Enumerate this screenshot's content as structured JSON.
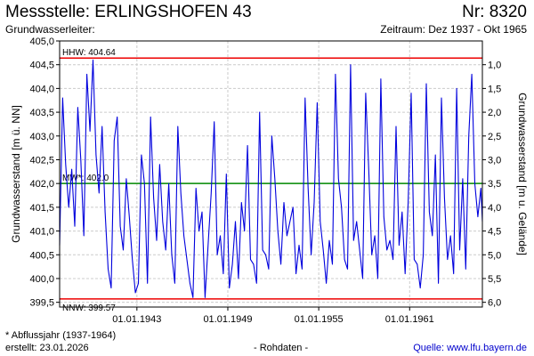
{
  "header": {
    "station_title": "Messstelle: ERLINGSHOFEN 43",
    "station_number": "Nr: 8320",
    "aquifer_label": "Grundwasserleiter:",
    "period": "Zeitraum: Dez 1937 - Okt 1965"
  },
  "footer": {
    "footnote": "* Abflussjahr (1937-1964)",
    "created": "erstellt:  23.01.2026",
    "raw_data": "- Rohdaten -",
    "source": "Quelle:  www.lfu.bayern.de"
  },
  "colors": {
    "series": "#0000dd",
    "extreme_lines": "#ee0000",
    "mean_line": "#008800",
    "grid": "#cccccc"
  },
  "chart_data": {
    "type": "line",
    "ylabel": "Grundwasserstand [m ü. NN]",
    "ylabel_right": "Grundwasserstand [m u. Gelände]",
    "ylim": [
      399.4,
      405.0
    ],
    "yticks": [
      "405,0",
      "404,5",
      "404,0",
      "403,5",
      "403,0",
      "402,5",
      "402,0",
      "401,5",
      "401,0",
      "400,5",
      "400,0",
      "399,5"
    ],
    "ytick_values": [
      405.0,
      404.5,
      404.0,
      403.5,
      403.0,
      402.5,
      402.0,
      401.5,
      401.0,
      400.5,
      400.0,
      399.5
    ],
    "yticks_right": [
      "1,0",
      "1,5",
      "2,0",
      "2,5",
      "3,0",
      "3,5",
      "4,0",
      "4,5",
      "5,0",
      "5,5",
      "6,0"
    ],
    "yticks_right_values": [
      1.0,
      1.5,
      2.0,
      2.5,
      3.0,
      3.5,
      4.0,
      4.5,
      5.0,
      5.5,
      6.0
    ],
    "ground_level": 405.5,
    "xlim": [
      1937.9,
      1965.8
    ],
    "xticks": [
      "01.01.1943",
      "01.01.1949",
      "01.01.1955",
      "01.01.1961"
    ],
    "xtick_values": [
      1943.0,
      1949.0,
      1955.0,
      1961.0
    ],
    "grid": true,
    "reference_lines": [
      {
        "label": "HHW: 404.64",
        "value": 404.64,
        "kind": "max"
      },
      {
        "label": "MW*: 402.0",
        "value": 402.0,
        "kind": "mean"
      },
      {
        "label": "NNW: 399.57",
        "value": 399.57,
        "kind": "min"
      }
    ],
    "series": [
      {
        "x": [
          1937.9,
          1938.1,
          1938.3,
          1938.5,
          1938.7,
          1938.9,
          1939.1,
          1939.3,
          1939.5,
          1939.7,
          1939.9,
          1940.1,
          1940.3,
          1940.5,
          1940.7,
          1940.9,
          1941.1,
          1941.3,
          1941.5,
          1941.7,
          1941.9,
          1942.1,
          1942.3,
          1942.5,
          1942.7,
          1942.9,
          1943.1,
          1943.3,
          1943.5,
          1943.7,
          1943.9,
          1944.1,
          1944.3,
          1944.5,
          1944.7,
          1944.9,
          1945.1,
          1945.3,
          1945.5,
          1945.7,
          1945.9,
          1946.1,
          1946.3,
          1946.5,
          1946.7,
          1946.9,
          1947.1,
          1947.3,
          1947.5,
          1947.7,
          1947.9,
          1948.1,
          1948.3,
          1948.5,
          1948.7,
          1948.9,
          1949.1,
          1949.3,
          1949.5,
          1949.7,
          1949.9,
          1950.1,
          1950.3,
          1950.5,
          1950.7,
          1950.9,
          1951.1,
          1951.3,
          1951.5,
          1951.7,
          1951.9,
          1952.1,
          1952.3,
          1952.5,
          1952.7,
          1952.9,
          1953.1,
          1953.3,
          1953.5,
          1953.7,
          1953.9,
          1954.1,
          1954.3,
          1954.5,
          1954.7,
          1954.9,
          1955.1,
          1955.3,
          1955.5,
          1955.7,
          1955.9,
          1956.1,
          1956.3,
          1956.5,
          1956.7,
          1956.9,
          1957.1,
          1957.3,
          1957.5,
          1957.7,
          1957.9,
          1958.1,
          1958.3,
          1958.5,
          1958.7,
          1958.9,
          1959.1,
          1959.3,
          1959.5,
          1959.7,
          1959.9,
          1960.1,
          1960.3,
          1960.5,
          1960.7,
          1960.9,
          1961.1,
          1961.3,
          1961.5,
          1961.7,
          1961.9,
          1962.1,
          1962.3,
          1962.5,
          1962.7,
          1962.9,
          1963.1,
          1963.3,
          1963.5,
          1963.7,
          1963.9,
          1964.1,
          1964.3,
          1964.5,
          1964.7,
          1964.9,
          1965.1,
          1965.3,
          1965.5,
          1965.7,
          1965.8
        ],
        "values": [
          400.7,
          403.8,
          402.4,
          401.5,
          402.3,
          401.1,
          403.6,
          402.5,
          400.9,
          404.3,
          403.1,
          404.6,
          402.6,
          401.8,
          403.2,
          401.4,
          400.2,
          399.8,
          402.9,
          403.4,
          401.1,
          400.6,
          402.1,
          401.3,
          400.4,
          399.7,
          399.9,
          402.6,
          402.0,
          399.9,
          403.4,
          401.7,
          400.8,
          402.4,
          401.2,
          400.6,
          402.0,
          400.5,
          399.9,
          403.2,
          401.8,
          400.9,
          400.4,
          399.9,
          399.6,
          401.9,
          401.0,
          401.4,
          399.6,
          400.7,
          401.8,
          403.3,
          400.5,
          400.9,
          400.1,
          402.2,
          399.8,
          400.3,
          401.2,
          400.0,
          401.6,
          401.0,
          402.8,
          400.4,
          400.3,
          399.9,
          403.5,
          400.6,
          400.5,
          400.2,
          403.0,
          402.1,
          401.0,
          400.3,
          401.6,
          400.9,
          401.2,
          401.5,
          400.1,
          400.7,
          400.2,
          403.8,
          401.9,
          400.5,
          401.6,
          403.7,
          401.2,
          400.6,
          399.9,
          400.8,
          400.3,
          404.3,
          402.1,
          401.5,
          400.4,
          400.2,
          404.5,
          400.8,
          401.2,
          400.6,
          400.0,
          403.9,
          402.3,
          400.5,
          400.9,
          400.0,
          404.2,
          401.3,
          400.6,
          400.8,
          400.4,
          403.2,
          400.7,
          401.4,
          400.1,
          401.6,
          403.9,
          400.4,
          400.3,
          399.8,
          400.5,
          404.1,
          401.4,
          400.9,
          402.6,
          399.9,
          403.8,
          401.7,
          400.4,
          400.9,
          400.1,
          404.0,
          400.6,
          402.1,
          400.2,
          403.0,
          404.3,
          402.0,
          401.3,
          401.9,
          401.2
        ]
      }
    ]
  }
}
